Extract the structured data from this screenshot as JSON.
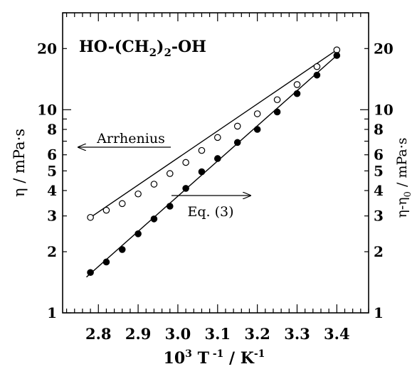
{
  "chart_data": {
    "type": "scatter",
    "title": "",
    "compound_label": {
      "prefix": "HO-(CH",
      "sub1": "2",
      "middle": ")",
      "sub2": "2",
      "suffix": "-OH"
    },
    "xlabel": {
      "base": "10",
      "sup1": "3",
      "mid": " T",
      "sup2": " -1",
      "unit": " / K",
      "sup3": "-1"
    },
    "ylabel_left": "η / mPa·s",
    "ylabel_right": {
      "base": "η-η",
      "sub": "0",
      "rest": " / mPa·s"
    },
    "x_axis": {
      "lim": [
        2.71,
        3.48
      ],
      "ticks": [
        2.8,
        2.9,
        3.0,
        3.1,
        3.2,
        3.3,
        3.4
      ],
      "tick_labels": [
        "2.8",
        "2.9",
        "3.0",
        "3.1",
        "3.2",
        "3.3",
        "3.4"
      ]
    },
    "y_axis": {
      "scale": "log",
      "lim": [
        1,
        30
      ],
      "ticks": [
        1,
        2,
        3,
        4,
        5,
        6,
        8,
        10,
        20
      ],
      "tick_labels": [
        "1",
        "2",
        "3",
        "4",
        "5",
        "6",
        "8",
        "10",
        "20"
      ]
    },
    "series": [
      {
        "marker": "open-circle",
        "x": [
          2.78,
          2.82,
          2.86,
          2.9,
          2.94,
          2.98,
          3.02,
          3.06,
          3.1,
          3.15,
          3.2,
          3.25,
          3.3,
          3.35,
          3.4
        ],
        "y": [
          2.95,
          3.2,
          3.45,
          3.85,
          4.3,
          4.85,
          5.5,
          6.3,
          7.3,
          8.3,
          9.55,
          11.2,
          13.3,
          16.3,
          19.7
        ]
      },
      {
        "marker": "filled-circle",
        "x": [
          2.78,
          2.82,
          2.86,
          2.9,
          2.94,
          2.98,
          3.02,
          3.06,
          3.1,
          3.15,
          3.2,
          3.25,
          3.3,
          3.35,
          3.4
        ],
        "y": [
          1.58,
          1.78,
          2.05,
          2.45,
          2.9,
          3.35,
          4.1,
          4.95,
          5.75,
          6.9,
          8.0,
          9.75,
          12.0,
          14.8,
          18.5
        ]
      }
    ],
    "fit_lines": [
      {
        "x": [
          2.78,
          3.4
        ],
        "y": [
          2.95,
          19.7
        ]
      },
      {
        "x": [
          2.77,
          3.4
        ],
        "y": [
          1.5,
          18.5
        ]
      }
    ],
    "annotations": {
      "arrhenius": "Arrhenius",
      "eq3": "Eq. (3)"
    }
  }
}
